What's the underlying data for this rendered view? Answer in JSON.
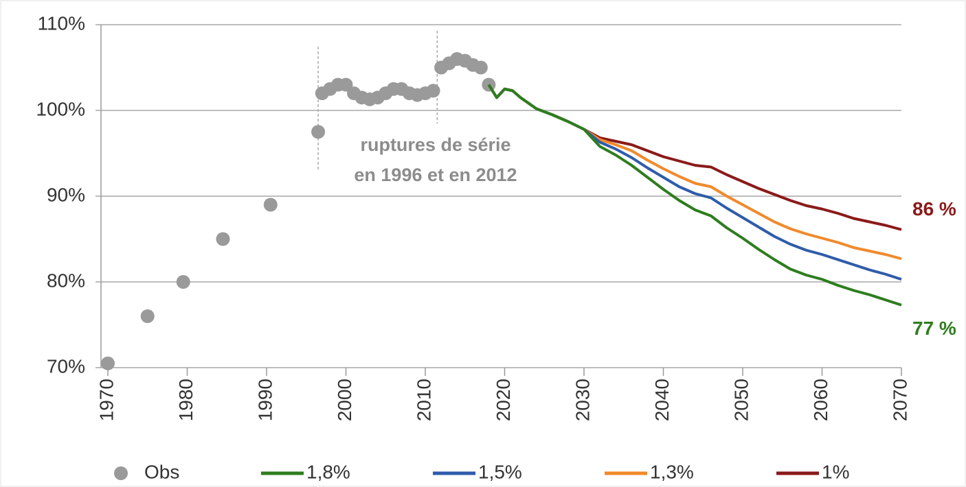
{
  "chart_data": {
    "type": "line",
    "annotations": [
      "ruptures de série",
      "en 1996 et en 2012"
    ],
    "break_years": [
      1996.5,
      2011.5
    ],
    "xlim": [
      1970,
      2070
    ],
    "xticks": [
      1970,
      1980,
      1990,
      2000,
      2010,
      2020,
      2030,
      2040,
      2050,
      2060,
      2070
    ],
    "ylim": [
      70,
      110
    ],
    "yticks": [
      {
        "value": 70,
        "label": "70%"
      },
      {
        "value": 80,
        "label": "80%"
      },
      {
        "value": 90,
        "label": "90%"
      },
      {
        "value": 100,
        "label": "100%"
      },
      {
        "value": 110,
        "label": "110%"
      }
    ],
    "grid": true,
    "legend": "bottom",
    "x": [
      2018,
      2019,
      2020,
      2021,
      2022,
      2024,
      2026,
      2028,
      2030,
      2032,
      2034,
      2036,
      2038,
      2040,
      2042,
      2044,
      2046,
      2048,
      2050,
      2052,
      2054,
      2056,
      2058,
      2060,
      2062,
      2064,
      2066,
      2068,
      2070
    ],
    "series": [
      {
        "name": "Obs",
        "type": "scatter",
        "color": "#9a9a9a",
        "x": [
          1970,
          1975,
          1979.5,
          1984.5,
          1990.5,
          1996.5,
          1997,
          1998,
          1999,
          2000,
          2001,
          2002,
          2003,
          2004,
          2005,
          2006,
          2007,
          2008,
          2009,
          2010,
          2011,
          2012,
          2013,
          2014,
          2015,
          2016,
          2017,
          2018
        ],
        "values": [
          70.5,
          76,
          80,
          85,
          89,
          97.5,
          102,
          102.5,
          103,
          103,
          102,
          101.5,
          101.3,
          101.5,
          102,
          102.5,
          102.5,
          102,
          101.8,
          102,
          102.3,
          105,
          105.5,
          106,
          105.8,
          105.3,
          105,
          103
        ]
      },
      {
        "name": "1,8%",
        "type": "line",
        "color": "#2e7d1e",
        "end_label": "77 %",
        "values": [
          103,
          101.5,
          102.5,
          102.3,
          101.5,
          100.2,
          99.5,
          98.7,
          97.8,
          95.8,
          94.8,
          93.6,
          92.2,
          90.8,
          89.5,
          88.4,
          87.7,
          86.3,
          85.1,
          83.8,
          82.6,
          81.5,
          80.8,
          80.3,
          79.6,
          79,
          78.5,
          77.9,
          77.3
        ]
      },
      {
        "name": "1,5%",
        "type": "line",
        "color": "#2f5caa",
        "values": [
          103,
          101.5,
          102.5,
          102.3,
          101.5,
          100.2,
          99.5,
          98.7,
          97.8,
          96.3,
          95.5,
          94.5,
          93.3,
          92.2,
          91.1,
          90.3,
          89.8,
          88.6,
          87.5,
          86.4,
          85.3,
          84.4,
          83.7,
          83.2,
          82.6,
          82,
          81.4,
          80.9,
          80.3
        ]
      },
      {
        "name": "1,3%",
        "type": "line",
        "color": "#f08a2c",
        "values": [
          103,
          101.5,
          102.5,
          102.3,
          101.5,
          100.2,
          99.5,
          98.7,
          97.8,
          96.6,
          96,
          95.3,
          94.2,
          93.2,
          92.3,
          91.5,
          91.1,
          90,
          89,
          88,
          87,
          86.2,
          85.6,
          85.1,
          84.6,
          84,
          83.6,
          83.2,
          82.7
        ]
      },
      {
        "name": "1%",
        "type": "line",
        "color": "#8b1a1a",
        "end_label": "86 %",
        "values": [
          103,
          101.5,
          102.5,
          102.3,
          101.5,
          100.2,
          99.5,
          98.7,
          97.8,
          96.8,
          96.4,
          96,
          95.3,
          94.6,
          94.1,
          93.6,
          93.4,
          92.5,
          91.7,
          90.9,
          90.2,
          89.5,
          88.9,
          88.5,
          88,
          87.4,
          87,
          86.6,
          86.1
        ]
      }
    ]
  }
}
